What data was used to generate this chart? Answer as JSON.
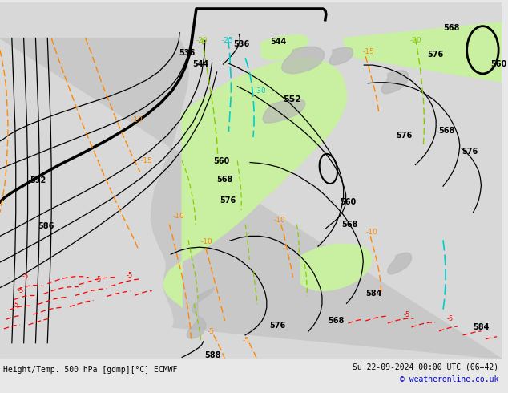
{
  "title_left": "Height/Temp. 500 hPa [gdmp][°C] ECMWF",
  "title_right": "Su 22-09-2024 00:00 UTC (06+42)",
  "copyright": "© weatheronline.co.uk",
  "bg_color": "#e8e8e8",
  "ocean_color": "#e0e0e0",
  "land_gray": "#c8c8c8",
  "green_fill": "#c8f0a0",
  "contour_black": "#000000",
  "orange_color": "#ff8800",
  "red_color": "#ff0000",
  "cyan_color": "#00cccc",
  "green_line": "#44cc44",
  "yellow_green": "#88cc00",
  "bottom_bar": "#e8e8e8",
  "copyright_color": "#0000cc",
  "figsize": [
    6.34,
    4.9
  ],
  "dpi": 100
}
